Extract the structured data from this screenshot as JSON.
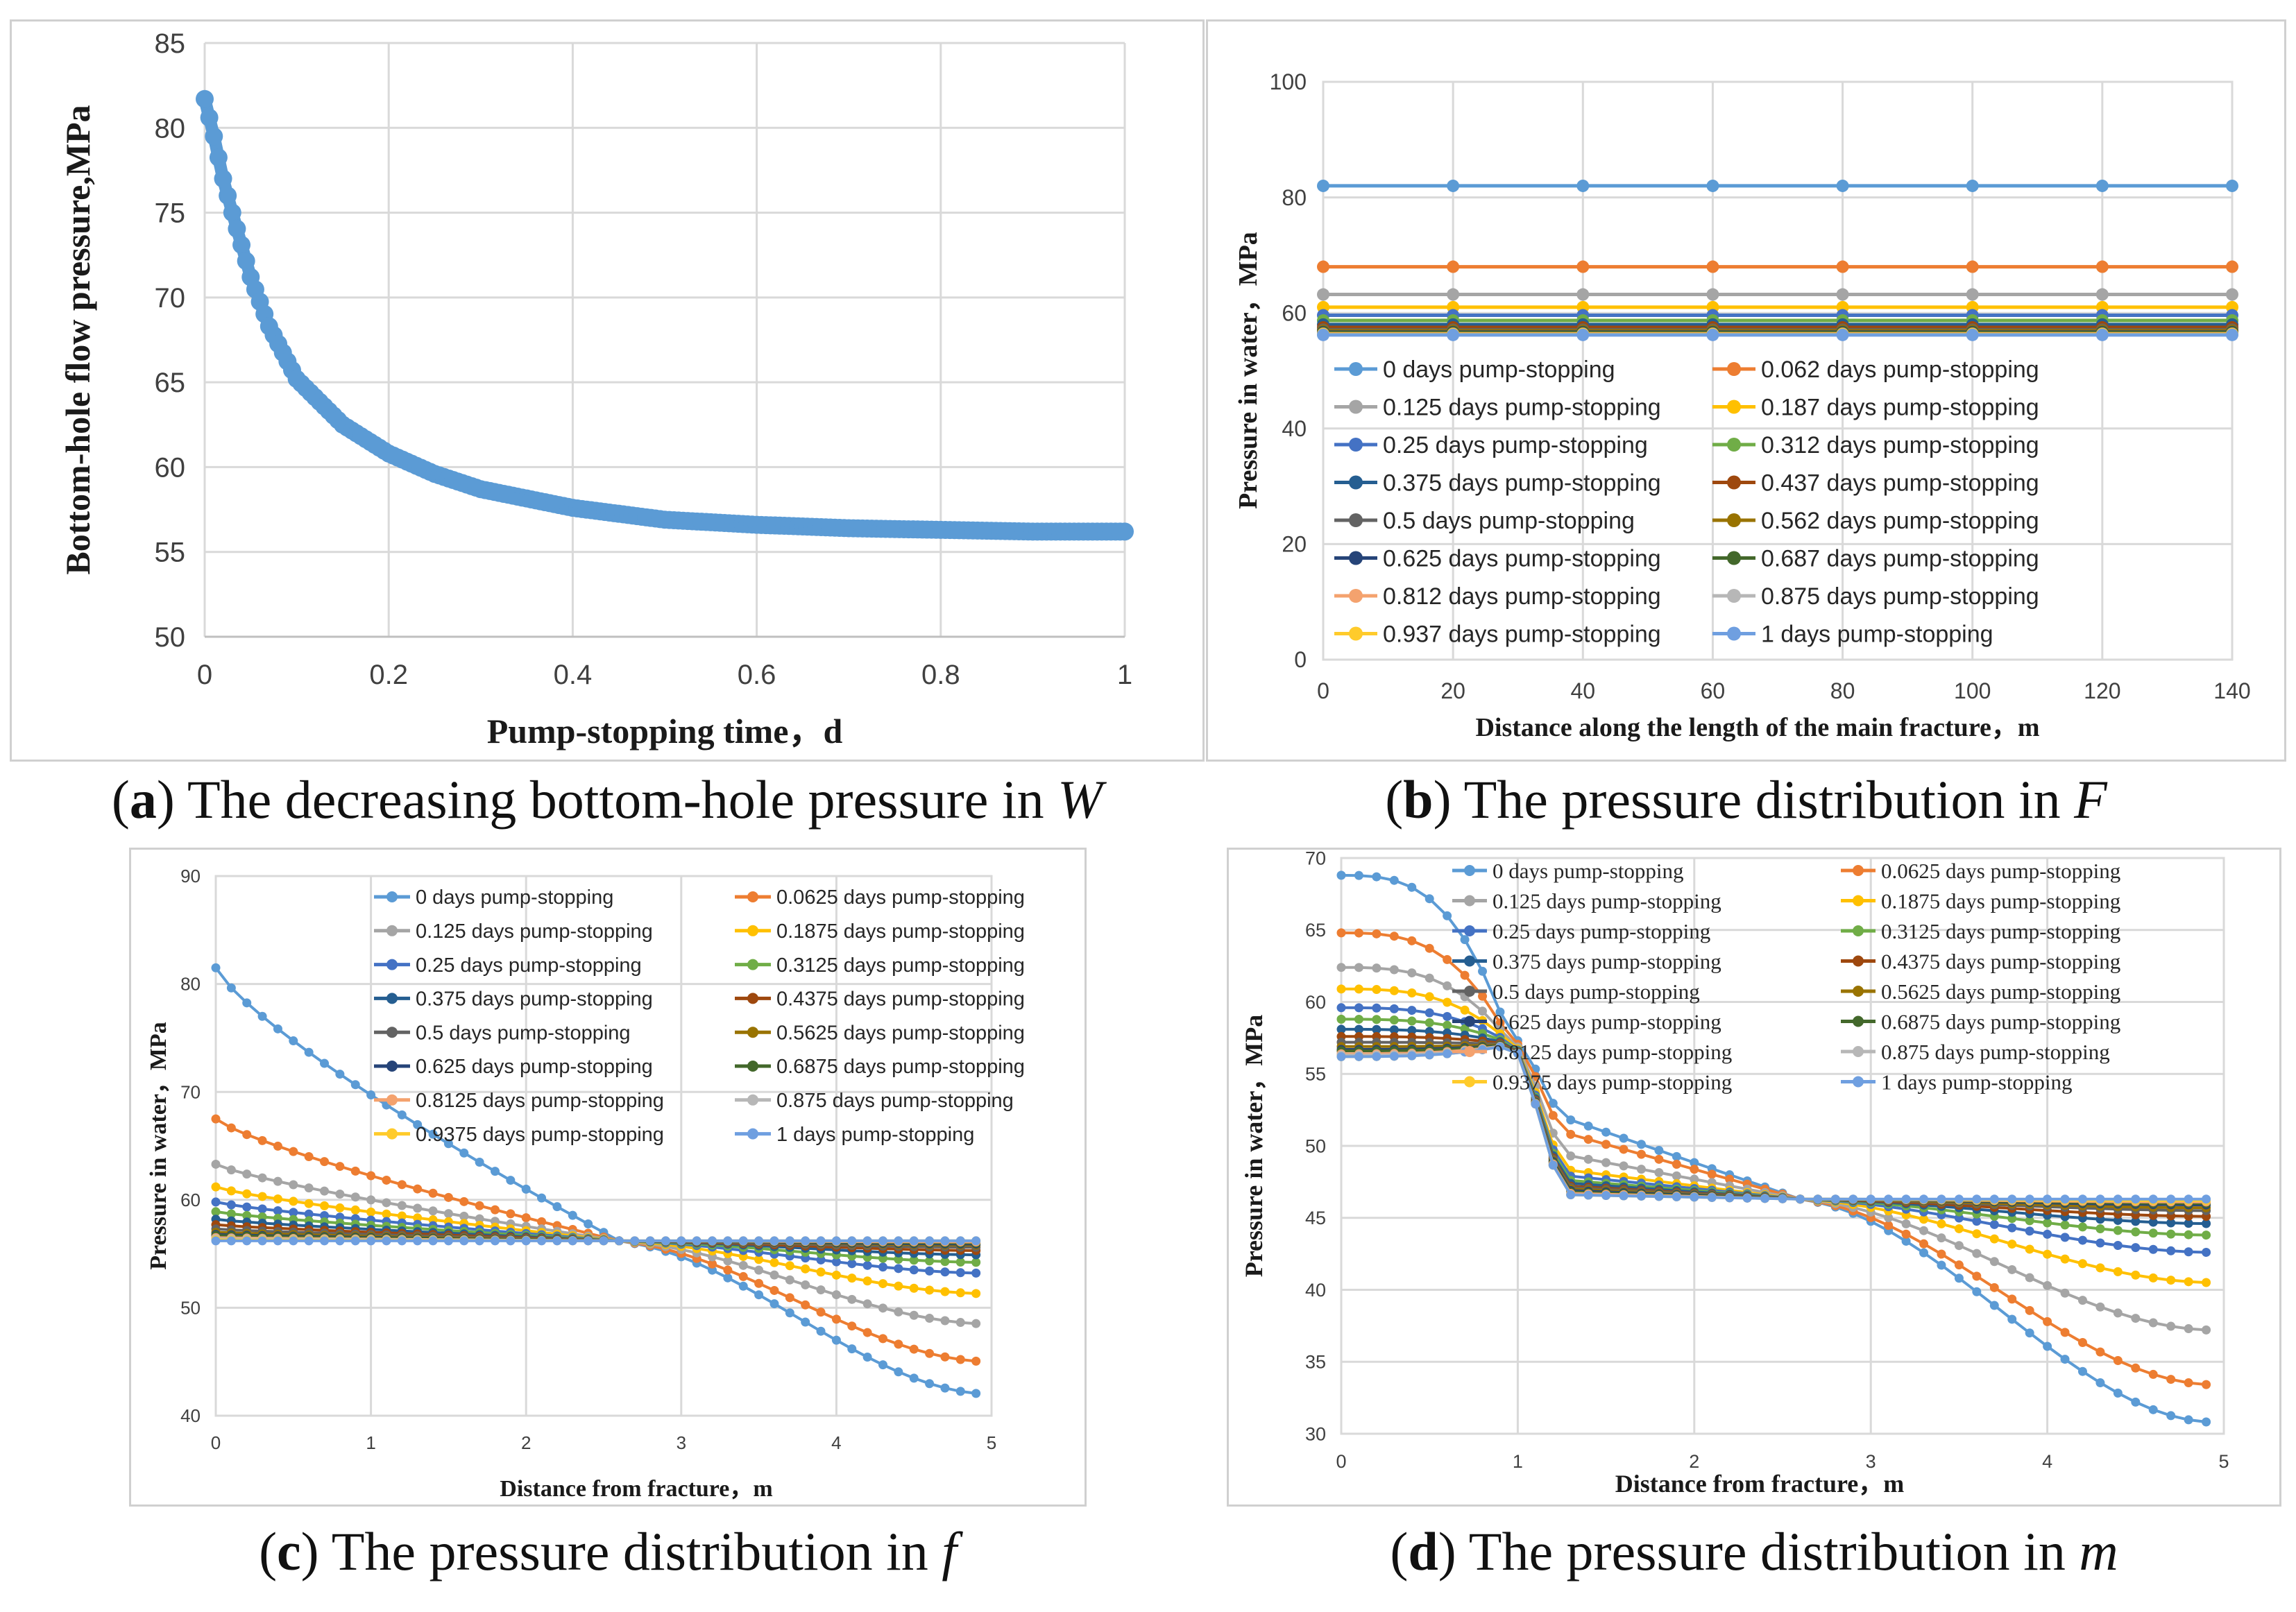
{
  "captions": [
    {
      "letter": "a",
      "text": " The decreasing bottom-hole pressure in ",
      "symbol": "W",
      "open": "(",
      "close": ")"
    },
    {
      "letter": "b",
      "text": " The pressure distribution in ",
      "symbol": "F",
      "open": "(",
      "close": ")"
    },
    {
      "letter": "c",
      "text": " The pressure distribution in ",
      "symbol": "f",
      "open": "(",
      "close": ")"
    },
    {
      "letter": "d",
      "text": " The pressure distribution in ",
      "symbol": "m",
      "open": "(",
      "close": ")"
    }
  ],
  "colors": [
    "#5b9bd5",
    "#ed7d31",
    "#a5a5a5",
    "#ffc000",
    "#4472c4",
    "#70ad47",
    "#255e91",
    "#9e480e",
    "#636363",
    "#997300",
    "#264478",
    "#43682b",
    "#f4a26e",
    "#b7b7b7",
    "#ffcb2b",
    "#6f9fe0"
  ],
  "chart_data": [
    {
      "id": "a",
      "type": "scatter",
      "title": "",
      "xlabel": "Pump-stopping time，d",
      "ylabel": "Bottom-hole flow pressure,MPa",
      "xlim": [
        0,
        1
      ],
      "ylim": [
        50,
        85
      ],
      "xticks": [
        0,
        0.2,
        0.4,
        0.6,
        0.8,
        1
      ],
      "xtick_labels": [
        "0",
        "0.2",
        "0.4",
        "0.6",
        "0.8",
        "1"
      ],
      "yticks": [
        50,
        55,
        60,
        65,
        70,
        75,
        80,
        85
      ],
      "series": [
        {
          "name": "Bottom-hole flow pressure",
          "x": [
            0,
            0.01,
            0.02,
            0.03,
            0.05,
            0.07,
            0.1,
            0.15,
            0.2,
            0.25,
            0.3,
            0.4,
            0.5,
            0.6,
            0.7,
            0.8,
            0.9,
            1.0
          ],
          "y": [
            81.7,
            79.5,
            77.0,
            75.0,
            71.2,
            68.3,
            65.2,
            62.5,
            60.8,
            59.6,
            58.7,
            57.6,
            56.9,
            56.6,
            56.4,
            56.3,
            56.2,
            56.2
          ]
        }
      ]
    },
    {
      "id": "b",
      "type": "line",
      "xlabel": "Distance along the length  of the main fracture，m",
      "ylabel": "Pressure  in water，MPa",
      "xlim": [
        0,
        140
      ],
      "ylim": [
        0,
        100
      ],
      "xticks": [
        0,
        20,
        40,
        60,
        80,
        100,
        120,
        140
      ],
      "yticks": [
        0,
        20,
        40,
        60,
        80,
        100
      ],
      "x": [
        0,
        20,
        40,
        60,
        80,
        100,
        120,
        140
      ],
      "series": [
        {
          "name": "0 days pump-stopping",
          "value": 82
        },
        {
          "name": "0.062 days pump-stopping",
          "value": 68
        },
        {
          "name": "0.125 days pump-stopping",
          "value": 63.2
        },
        {
          "name": "0.187 days pump-stopping",
          "value": 61
        },
        {
          "name": "0.25 days pump-stopping",
          "value": 59.6
        },
        {
          "name": "0.312 days pump-stopping",
          "value": 58.7
        },
        {
          "name": "0.375 days pump-stopping",
          "value": 58
        },
        {
          "name": "0.437 days pump-stopping",
          "value": 57.5
        },
        {
          "name": "0.5 days pump-stopping",
          "value": 57.1
        },
        {
          "name": "0.562 days pump-stopping",
          "value": 56.9
        },
        {
          "name": "0.625 days pump-stopping",
          "value": 56.7
        },
        {
          "name": "0.687 days pump-stopping",
          "value": 56.6
        },
        {
          "name": "0.812 days pump-stopping",
          "value": 56.4
        },
        {
          "name": "0.875 days pump-stopping",
          "value": 56.3
        },
        {
          "name": "0.937 days pump-stopping",
          "value": 56.3
        },
        {
          "name": "1 days pump-stopping",
          "value": 56.2
        }
      ]
    },
    {
      "id": "c",
      "type": "line",
      "xlabel": "Distance from fracture，m",
      "ylabel": "Pressure  in water，MPa",
      "xlim": [
        0,
        5
      ],
      "ylim": [
        40,
        90
      ],
      "xticks": [
        0,
        1,
        2,
        3,
        4,
        5
      ],
      "yticks": [
        40,
        50,
        60,
        70,
        80,
        90
      ],
      "x_range": [
        0,
        4.9
      ],
      "x_step": 0.1,
      "series": [
        {
          "name": "0 days pump-stopping",
          "start": 81.5,
          "end": 42.0
        },
        {
          "name": "0.0625 days pump-stopping",
          "start": 67.5,
          "end": 45.0
        },
        {
          "name": "0.125 days pump-stopping",
          "start": 63.3,
          "end": 48.5
        },
        {
          "name": "0.1875 days pump-stopping",
          "start": 61.2,
          "end": 51.3
        },
        {
          "name": "0.25 days pump-stopping",
          "start": 59.8,
          "end": 53.2
        },
        {
          "name": "0.3125 days pump-stopping",
          "start": 58.9,
          "end": 54.2
        },
        {
          "name": "0.375 days pump-stopping",
          "start": 58.2,
          "end": 54.9
        },
        {
          "name": "0.4375 days pump-stopping",
          "start": 57.7,
          "end": 55.3
        },
        {
          "name": "0.5 days pump-stopping",
          "start": 57.3,
          "end": 55.6
        },
        {
          "name": "0.5625 days pump-stopping",
          "start": 57.0,
          "end": 55.8
        },
        {
          "name": "0.625 days pump-stopping",
          "start": 56.8,
          "end": 55.9
        },
        {
          "name": "0.6875 days pump-stopping",
          "start": 56.7,
          "end": 56.0
        },
        {
          "name": "0.8125 days pump-stopping",
          "start": 56.5,
          "end": 56.1
        },
        {
          "name": "0.875 days pump-stopping",
          "start": 56.4,
          "end": 56.2
        },
        {
          "name": "0.9375 days pump-stopping",
          "start": 56.3,
          "end": 56.2
        },
        {
          "name": "1 days pump-stopping",
          "start": 56.2,
          "end": 56.2
        }
      ]
    },
    {
      "id": "d",
      "type": "line",
      "xlabel": "Distance from fracture，m",
      "ylabel": "Pressure  in water，MPa",
      "xlim": [
        0,
        5
      ],
      "ylim": [
        30,
        70
      ],
      "xticks": [
        0,
        1,
        2,
        3,
        4,
        5
      ],
      "yticks": [
        30,
        35,
        40,
        45,
        50,
        55,
        60,
        65,
        70
      ],
      "x_range": [
        0,
        4.9
      ],
      "x_step": 0.1,
      "series": [
        {
          "name": "0 days pump-stopping",
          "left": 68.8,
          "mid": 51.8,
          "right": 30.8
        },
        {
          "name": "0.0625 days pump-stopping",
          "left": 64.8,
          "mid": 50.8,
          "right": 33.4
        },
        {
          "name": "0.125 days pump-stopping",
          "left": 62.4,
          "mid": 49.3,
          "right": 37.2
        },
        {
          "name": "0.1875 days pump-stopping",
          "left": 60.9,
          "mid": 48.3,
          "right": 40.5
        },
        {
          "name": "0.25 days pump-stopping",
          "left": 59.6,
          "mid": 47.9,
          "right": 42.6
        },
        {
          "name": "0.3125 days pump-stopping",
          "left": 58.8,
          "mid": 47.6,
          "right": 43.8
        },
        {
          "name": "0.375 days pump-stopping",
          "left": 58.1,
          "mid": 47.4,
          "right": 44.6
        },
        {
          "name": "0.4375 days pump-stopping",
          "left": 57.6,
          "mid": 47.2,
          "right": 45.1
        },
        {
          "name": "0.5 days pump-stopping",
          "left": 57.2,
          "mid": 47.1,
          "right": 45.5
        },
        {
          "name": "0.5625 days pump-stopping",
          "left": 56.9,
          "mid": 47.0,
          "right": 45.7
        },
        {
          "name": "0.625 days pump-stopping",
          "left": 56.7,
          "mid": 46.9,
          "right": 45.9
        },
        {
          "name": "0.6875 days pump-stopping",
          "left": 56.6,
          "mid": 46.8,
          "right": 46.0
        },
        {
          "name": "0.8125 days pump-stopping",
          "left": 56.4,
          "mid": 46.7,
          "right": 46.1
        },
        {
          "name": "0.875 days pump-stopping",
          "left": 56.3,
          "mid": 46.6,
          "right": 46.2
        },
        {
          "name": "0.9375 days pump-stopping",
          "left": 56.2,
          "mid": 46.6,
          "right": 46.2
        },
        {
          "name": "1 days pump-stopping",
          "left": 56.2,
          "mid": 46.6,
          "right": 46.3
        }
      ]
    }
  ]
}
